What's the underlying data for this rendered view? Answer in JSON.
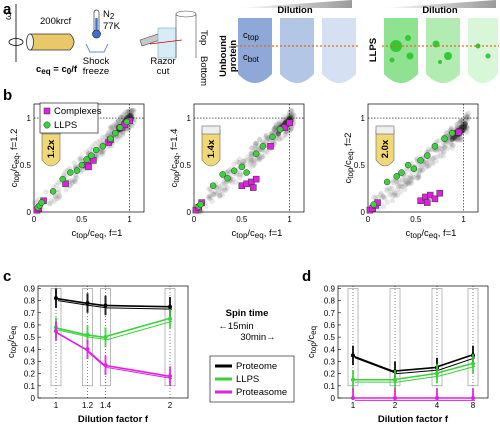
{
  "panels": {
    "a": {
      "letter": "a",
      "omega": "ω",
      "speed": "200krcf",
      "ceq_label": "c",
      "ceq_sub": "eq",
      "ceq_rest": " = c",
      "ceq_sub2": "0",
      "ceq_rest2": "/f",
      "n2": "N",
      "n2_sub": "2",
      "temp": "77K",
      "shock_freeze": [
        "Shock",
        "freeze"
      ],
      "razor_cut": [
        "Razor",
        "cut"
      ],
      "top": "Top",
      "bottom": "Bottom",
      "dilution_1": "Dilution",
      "dilution_2": "Dilution",
      "unbound_protein": [
        "Unbound",
        "protein"
      ],
      "ctop": "c",
      "ctop_sub": "top",
      "cbot": "c",
      "cbot_sub": "bot",
      "llps": "LLPS",
      "colors": {
        "blue_dark": "#8ea9d8",
        "blue_mid": "#b3c6e6",
        "blue_light": "#d5e0f2",
        "green_dark": "#8fe28f",
        "green_mid": "#b3ecb3",
        "green_light": "#d8f6d8",
        "dashed_line": "#e06a1b",
        "tube": "#e8c868"
      }
    },
    "b": {
      "letter": "b",
      "legend_complexes": "Complexes",
      "legend_llps": "LLPS",
      "colors": {
        "complexes": "#e020e0",
        "llps": "#3ad23a",
        "proteome": "#808080"
      },
      "subplots": [
        {
          "factor_label": "1.2x",
          "ylabel": "c",
          "ylabel_sub": "top",
          "ylabel_mid": "/c",
          "ylabel_sub2": "eq",
          "ylabel_tail": ",  f=1.2",
          "xlabel": "c",
          "xlabel_sub": "top",
          "xlabel_mid": "/c",
          "xlabel_sub2": "eq",
          "xlabel_tail": ",  f=1"
        },
        {
          "factor_label": "1.4x",
          "ylabel": "c",
          "ylabel_sub": "top",
          "ylabel_mid": "/c",
          "ylabel_sub2": "eq",
          "ylabel_tail": ",  f=1.4",
          "xlabel": "c",
          "xlabel_sub": "top",
          "xlabel_mid": "/c",
          "xlabel_sub2": "eq",
          "xlabel_tail": ",  f=1"
        },
        {
          "factor_label": "2.0x",
          "ylabel": "c",
          "ylabel_sub": "top",
          "ylabel_mid": "/c",
          "ylabel_sub2": "eq",
          "ylabel_tail": ",  f=2",
          "xlabel": "c",
          "xlabel_sub": "top",
          "xlabel_mid": "/c",
          "xlabel_sub2": "eq",
          "xlabel_tail": ",  f=1"
        }
      ],
      "ticks": [
        "0",
        "0.5",
        "1"
      ]
    },
    "c": {
      "letter": "c",
      "ylabel": "c",
      "ylabel_sub": "top",
      "ylabel_mid": "/c",
      "ylabel_sub2": "eq",
      "xlabel": "Dilution factor f",
      "yticks": [
        "0",
        "0.1",
        "0.2",
        "0.3",
        "0.4",
        "0.5",
        "0.6",
        "0.7",
        "0.8",
        "0.9"
      ],
      "xticks": [
        "1",
        "1.2",
        "1.4",
        "2"
      ]
    },
    "mid": {
      "spin_time": "Spin time",
      "t15": "←15min",
      "t30": "30min→",
      "legend": [
        "Proteome",
        "LLPS",
        "Proteasome"
      ],
      "legend_colors": [
        "#000000",
        "#3ad23a",
        "#e020e0"
      ]
    },
    "d": {
      "letter": "d",
      "ylabel": "c",
      "ylabel_sub": "top",
      "ylabel_mid": "/c",
      "ylabel_sub2": "eq",
      "xlabel": "Dilution factor f",
      "yticks": [
        "0",
        "0.1",
        "0.2",
        "0.3",
        "0.4",
        "0.5",
        "0.6",
        "0.7",
        "0.8",
        "0.9"
      ],
      "xticks": [
        "1",
        "2",
        "4",
        "8"
      ]
    }
  },
  "chart_data": [
    {
      "type": "scatter",
      "panel": "b1",
      "xlim": [
        0,
        1.15
      ],
      "ylim": [
        0,
        1.15
      ],
      "series": [
        {
          "name": "Complexes",
          "x": [
            0.03,
            0.05,
            0.1,
            0.33,
            0.55,
            0.57,
            0.62,
            0.78,
            0.8,
            0.92,
            0.95,
            1.0
          ],
          "y": [
            0.02,
            0.04,
            0.12,
            0.3,
            0.5,
            0.48,
            0.55,
            0.74,
            0.77,
            0.9,
            0.93,
            0.97
          ]
        },
        {
          "name": "LLPS",
          "x": [
            0.04,
            0.06,
            0.08,
            0.2,
            0.3,
            0.38,
            0.45,
            0.5,
            0.55,
            0.6,
            0.65,
            0.72,
            0.8,
            0.85,
            0.9,
            0.97
          ],
          "y": [
            0.05,
            0.07,
            0.1,
            0.22,
            0.35,
            0.42,
            0.44,
            0.5,
            0.56,
            0.6,
            0.66,
            0.7,
            0.78,
            0.84,
            0.9,
            0.96
          ]
        }
      ]
    },
    {
      "type": "scatter",
      "panel": "b2",
      "xlim": [
        0,
        1.15
      ],
      "ylim": [
        0,
        1.15
      ],
      "series": [
        {
          "name": "Complexes",
          "x": [
            0.02,
            0.05,
            0.08,
            0.5,
            0.55,
            0.6,
            0.62,
            0.65,
            0.8,
            0.95,
            1.0
          ],
          "y": [
            0.02,
            0.05,
            0.1,
            0.28,
            0.3,
            0.32,
            0.26,
            0.35,
            0.7,
            0.9,
            0.95
          ]
        },
        {
          "name": "LLPS",
          "x": [
            0.05,
            0.07,
            0.2,
            0.3,
            0.35,
            0.42,
            0.5,
            0.55,
            0.65,
            0.72,
            0.82,
            0.9
          ],
          "y": [
            0.06,
            0.08,
            0.28,
            0.4,
            0.36,
            0.44,
            0.48,
            0.42,
            0.62,
            0.7,
            0.8,
            0.88
          ]
        }
      ]
    },
    {
      "type": "scatter",
      "panel": "b3",
      "xlim": [
        0,
        1.15
      ],
      "ylim": [
        0,
        1.15
      ],
      "series": [
        {
          "name": "Complexes",
          "x": [
            0.02,
            0.05,
            0.08,
            0.1,
            0.55,
            0.6,
            0.62,
            0.65,
            0.7,
            0.75,
            0.95
          ],
          "y": [
            0.02,
            0.04,
            0.07,
            0.1,
            0.12,
            0.16,
            0.1,
            0.18,
            0.14,
            0.2,
            0.85
          ]
        },
        {
          "name": "LLPS",
          "x": [
            0.06,
            0.2,
            0.3,
            0.35,
            0.42,
            0.48,
            0.55,
            0.62,
            0.7,
            0.8,
            0.88
          ],
          "y": [
            0.08,
            0.32,
            0.38,
            0.42,
            0.5,
            0.46,
            0.55,
            0.6,
            0.7,
            0.78,
            0.84
          ]
        }
      ]
    },
    {
      "type": "line",
      "panel": "c",
      "x": [
        1,
        1.2,
        1.4,
        2
      ],
      "ylim": [
        0,
        0.92
      ],
      "series": [
        {
          "name": "Proteome",
          "values": [
            0.82,
            0.78,
            0.76,
            0.75
          ]
        },
        {
          "name": "LLPS",
          "values": [
            0.58,
            0.52,
            0.5,
            0.65
          ]
        },
        {
          "name": "Proteasome",
          "values": [
            0.55,
            0.4,
            0.27,
            0.18
          ]
        }
      ]
    },
    {
      "type": "line",
      "panel": "d",
      "x": [
        1,
        2,
        4,
        8
      ],
      "ylim": [
        0,
        0.92
      ],
      "series": [
        {
          "name": "Proteome",
          "values": [
            0.35,
            0.22,
            0.25,
            0.35
          ]
        },
        {
          "name": "LLPS",
          "values": [
            0.15,
            0.15,
            0.2,
            0.28
          ]
        },
        {
          "name": "Proteasome",
          "values": [
            0.0,
            0.0,
            0.0,
            0.0
          ]
        }
      ]
    }
  ]
}
